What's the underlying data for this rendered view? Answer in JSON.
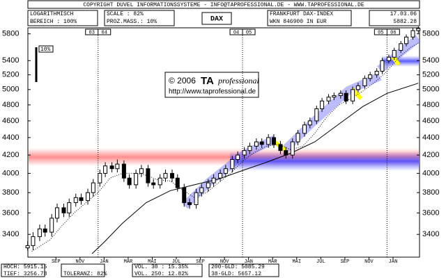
{
  "header": {
    "copyright": "COPYRIGHT DUVEL INFORMATIONSSYSTEME - INFO@TAPROFESSIONAL.DE - WWW.TAPROFESSIONAL.DE",
    "scale_mode": "LOGARITHMISCH",
    "range": "BEREICH : 100%",
    "scale": "SCALE : 82%",
    "proz": "PROZ.MASS.: 10%",
    "symbol": "DAX",
    "exchange": "FRANKFURT DAX-INDEX",
    "wkn": "WKN 846900 IN EUR",
    "date": "17.03.06",
    "last": "5882.28"
  },
  "footer": {
    "high": "HOCH: 5915.15",
    "low": "TIEF: 3256.78",
    "vol30": "VOL. 30 : 15.35%",
    "vol250": "VOL. 250: 12.82%",
    "tolerance": "TOLERANZ: 82%",
    "gld200": "200-GLD: 5085.29",
    "gld38": "38-GLD: 5657.12"
  },
  "watermark": {
    "line1": "© 2006",
    "brand": "TA",
    "brand2": "professional",
    "url": "http://www.taprofessional.de"
  },
  "scale_marker": "10%",
  "chart_data": {
    "type": "candlestick",
    "log_scale": true,
    "grid": false,
    "xlim": [
      0.17,
      32.7
    ],
    "ylim": [
      3200,
      5850
    ],
    "yticks": [
      3400,
      3600,
      3800,
      4000,
      4200,
      4400,
      4600,
      4800,
      5000,
      5200,
      5400,
      5800
    ],
    "xticks": [
      {
        "value": 2.5,
        "label": "SEP"
      },
      {
        "value": 4.5,
        "label": "NOV"
      },
      {
        "value": 6.5,
        "label": "JAN"
      },
      {
        "value": 8.5,
        "label": "MAR"
      },
      {
        "value": 10.5,
        "label": "MAI"
      },
      {
        "value": 12.5,
        "label": "JUL"
      },
      {
        "value": 14.5,
        "label": "SEP"
      },
      {
        "value": 16.5,
        "label": "NOV"
      },
      {
        "value": 18.5,
        "label": "JAN"
      },
      {
        "value": 20.5,
        "label": "MAR"
      },
      {
        "value": 22.5,
        "label": "MAI"
      },
      {
        "value": 24.5,
        "label": "JUL"
      },
      {
        "value": 26.5,
        "label": "SEP"
      },
      {
        "value": 28.5,
        "label": "NOV"
      },
      {
        "value": 30.5,
        "label": "JAN"
      }
    ],
    "year_markers": [
      {
        "value": 6,
        "labels": [
          "03",
          "04"
        ]
      },
      {
        "value": 18,
        "labels": [
          "04",
          "05"
        ]
      },
      {
        "value": 30,
        "labels": [
          "05",
          "06"
        ]
      }
    ],
    "up_color": "#ffffff",
    "down_color": "#000000",
    "x": [
      0.15,
      0.6,
      1.15,
      1.6,
      2.15,
      2.6,
      3.15,
      3.6,
      4.15,
      4.6,
      5.15,
      5.6,
      6.15,
      6.6,
      7.15,
      7.6,
      8.15,
      8.6,
      9.15,
      9.6,
      10.15,
      10.6,
      11.15,
      11.6,
      12.15,
      12.6,
      13.15,
      13.6,
      14.15,
      14.6,
      15.15,
      15.6,
      16.15,
      16.6,
      17.15,
      17.6,
      18.15,
      18.6,
      19.15,
      19.6,
      20.15,
      20.6,
      21.15,
      21.6,
      22.15,
      22.6,
      23.15,
      23.6,
      24.15,
      24.6,
      25.15,
      25.6,
      26.15,
      26.6,
      27.15,
      27.6,
      28.15,
      28.6,
      29.15,
      29.6,
      30.15,
      30.6,
      31.15,
      31.6,
      32.15,
      32.6
    ],
    "open": [
      3280,
      3300,
      3380,
      3450,
      3420,
      3550,
      3650,
      3600,
      3700,
      3750,
      3720,
      3800,
      3900,
      4000,
      4080,
      4050,
      4100,
      3950,
      3880,
      4000,
      4050,
      3900,
      3880,
      3950,
      4000,
      3950,
      3850,
      3700,
      3680,
      3800,
      3850,
      3900,
      3950,
      4000,
      4050,
      4150,
      4200,
      4250,
      4300,
      4350,
      4320,
      4400,
      4320,
      4250,
      4200,
      4350,
      4450,
      4550,
      4600,
      4750,
      4850,
      4900,
      4920,
      4950,
      4850,
      5000,
      5050,
      5150,
      5200,
      5250,
      5400,
      5450,
      5550,
      5650,
      5750,
      5850
    ],
    "high": [
      3340,
      3420,
      3490,
      3490,
      3590,
      3690,
      3690,
      3740,
      3790,
      3790,
      3840,
      3940,
      4040,
      4120,
      4120,
      4150,
      4140,
      3990,
      4040,
      4090,
      4090,
      3940,
      3990,
      4040,
      4040,
      3990,
      3890,
      3740,
      3840,
      3890,
      3940,
      3990,
      4040,
      4090,
      4190,
      4240,
      4290,
      4340,
      4390,
      4390,
      4440,
      4440,
      4360,
      4290,
      4390,
      4490,
      4590,
      4640,
      4790,
      4890,
      4940,
      4960,
      4990,
      4990,
      5040,
      5090,
      5190,
      5240,
      5290,
      5440,
      5490,
      5590,
      5690,
      5790,
      5890,
      5915.15
    ],
    "low": [
      3256.78,
      3260,
      3340,
      3380,
      3380,
      3510,
      3560,
      3560,
      3660,
      3680,
      3680,
      3760,
      3860,
      3960,
      4010,
      4010,
      3910,
      3840,
      3840,
      3960,
      3860,
      3840,
      3840,
      3910,
      3910,
      3810,
      3660,
      3640,
      3640,
      3760,
      3810,
      3860,
      3910,
      3960,
      4010,
      4110,
      4160,
      4210,
      4260,
      4280,
      4280,
      4280,
      4210,
      4160,
      4160,
      4310,
      4410,
      4510,
      4560,
      4710,
      4810,
      4860,
      4880,
      4810,
      4810,
      4960,
      5010,
      5110,
      5160,
      5210,
      5360,
      5410,
      5510,
      5610,
      5710,
      5810
    ],
    "close": [
      3300,
      3380,
      3450,
      3420,
      3550,
      3650,
      3600,
      3700,
      3750,
      3720,
      3800,
      3900,
      4000,
      4080,
      4050,
      4100,
      3950,
      3880,
      4000,
      4050,
      3900,
      3880,
      3950,
      4000,
      3950,
      3850,
      3700,
      3680,
      3800,
      3850,
      3900,
      3950,
      4000,
      4050,
      4150,
      4200,
      4250,
      4300,
      4350,
      4320,
      4400,
      4320,
      4250,
      4200,
      4350,
      4450,
      4550,
      4600,
      4750,
      4850,
      4900,
      4920,
      4950,
      4850,
      5000,
      5050,
      5150,
      5200,
      5250,
      5400,
      5450,
      5550,
      5650,
      5750,
      5850,
      5882.28
    ],
    "lines": [
      {
        "style": "solid",
        "color": "#000000",
        "x": [
          5.5,
          6.5,
          8,
          10,
          12,
          14,
          16,
          18,
          20,
          22,
          24,
          26,
          28,
          30,
          32.6
        ],
        "values": [
          3230,
          3330,
          3500,
          3700,
          3820,
          3880,
          3940,
          4030,
          4120,
          4220,
          4350,
          4560,
          4780,
          4950,
          5085.29
        ]
      },
      {
        "style": "dotted",
        "color": "#000000",
        "x": [
          0.5,
          2,
          3,
          4,
          5,
          6,
          7,
          8,
          9,
          10,
          11,
          12,
          13,
          14,
          15,
          16,
          17,
          18,
          19,
          20,
          21,
          22,
          23,
          24,
          25,
          26,
          27,
          28,
          29,
          30,
          31,
          32,
          32.6
        ],
        "values": [
          3250,
          3350,
          3480,
          3600,
          3700,
          3800,
          3950,
          4000,
          4000,
          3980,
          3930,
          3920,
          3830,
          3750,
          3800,
          3900,
          4000,
          4130,
          4230,
          4300,
          4320,
          4260,
          4300,
          4450,
          4650,
          4800,
          4880,
          4980,
          5100,
          5250,
          5450,
          5600,
          5657.12
        ]
      }
    ]
  }
}
